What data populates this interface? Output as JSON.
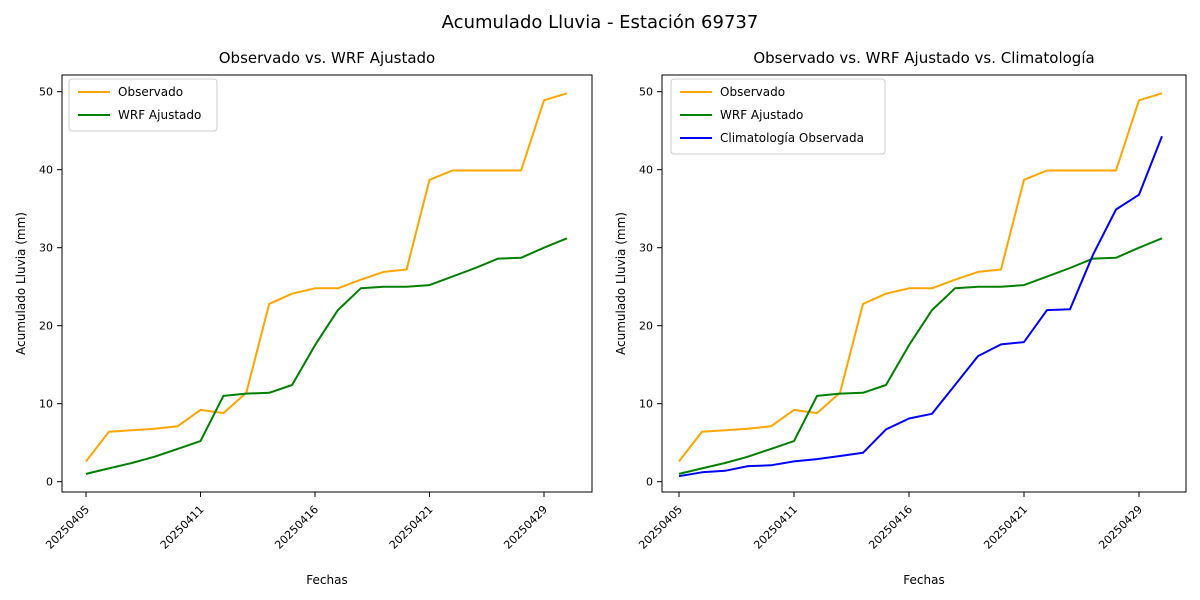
{
  "figure": {
    "suptitle": "Acumulado Lluvia - Estación 69737",
    "background": "#ffffff"
  },
  "chart_data": [
    {
      "type": "line",
      "title": "Observado vs. WRF Ajustado",
      "xlabel": "Fechas",
      "ylabel": "Acumulado Lluvia (mm)",
      "ylim": [
        0,
        50
      ],
      "yticks": [
        0,
        10,
        20,
        30,
        40,
        50
      ],
      "x_index_count": 22,
      "xtick_indices": [
        0,
        5,
        10,
        15,
        20
      ],
      "xtick_labels": [
        "20250405",
        "20250411",
        "20250416",
        "20250421",
        "20250429"
      ],
      "xtick_rotation_deg": 45,
      "grid": false,
      "legend_position": "upper left",
      "series": [
        {
          "name": "Observado",
          "color": "#FFA500",
          "values": [
            2.6,
            6.4,
            6.6,
            6.8,
            7.1,
            9.2,
            8.8,
            11.4,
            22.8,
            24.1,
            24.8,
            24.8,
            25.9,
            26.9,
            27.2,
            38.7,
            39.9,
            39.9,
            39.9,
            39.9,
            48.9,
            49.8
          ]
        },
        {
          "name": "WRF Ajustado",
          "color": "#008000",
          "values": [
            1.0,
            1.7,
            2.4,
            3.2,
            4.2,
            5.2,
            11.0,
            11.3,
            11.4,
            12.4,
            17.5,
            22.0,
            24.8,
            25.0,
            25.0,
            25.2,
            26.3,
            27.4,
            28.6,
            28.7,
            30.0,
            31.2
          ]
        }
      ]
    },
    {
      "type": "line",
      "title": "Observado vs. WRF Ajustado vs. Climatología",
      "xlabel": "Fechas",
      "ylabel": "Acumulado Lluvia (mm)",
      "ylim": [
        0,
        50
      ],
      "yticks": [
        0,
        10,
        20,
        30,
        40,
        50
      ],
      "x_index_count": 22,
      "xtick_indices": [
        0,
        5,
        10,
        15,
        20
      ],
      "xtick_labels": [
        "20250405",
        "20250411",
        "20250416",
        "20250421",
        "20250429"
      ],
      "xtick_rotation_deg": 45,
      "grid": false,
      "legend_position": "upper left",
      "series": [
        {
          "name": "Observado",
          "color": "#FFA500",
          "values": [
            2.6,
            6.4,
            6.6,
            6.8,
            7.1,
            9.2,
            8.8,
            11.4,
            22.8,
            24.1,
            24.8,
            24.8,
            25.9,
            26.9,
            27.2,
            38.7,
            39.9,
            39.9,
            39.9,
            39.9,
            48.9,
            49.8
          ]
        },
        {
          "name": "WRF Ajustado",
          "color": "#008000",
          "values": [
            1.0,
            1.7,
            2.4,
            3.2,
            4.2,
            5.2,
            11.0,
            11.3,
            11.4,
            12.4,
            17.5,
            22.0,
            24.8,
            25.0,
            25.0,
            25.2,
            26.3,
            27.4,
            28.6,
            28.7,
            30.0,
            31.2
          ]
        },
        {
          "name": "Climatología Observada",
          "color": "#0000FF",
          "values": [
            0.7,
            1.2,
            1.4,
            2.0,
            2.1,
            2.6,
            2.9,
            3.3,
            3.7,
            6.7,
            8.1,
            8.7,
            12.4,
            16.1,
            17.6,
            17.9,
            22.0,
            22.1,
            29.1,
            34.9,
            36.8,
            44.3
          ]
        }
      ]
    }
  ]
}
